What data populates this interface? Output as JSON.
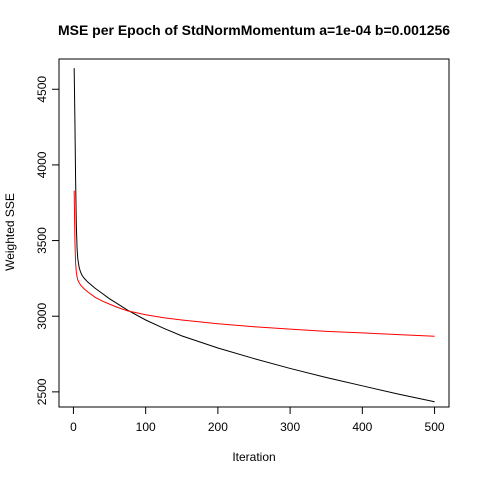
{
  "chart_data": {
    "type": "line",
    "title": "MSE per Epoch of StdNormMomentum a=1e-04 b=0.001256",
    "xlabel": "Iteration",
    "ylabel": "Weighted SSE",
    "xlim": [
      -20,
      520
    ],
    "ylim": [
      2400,
      4700
    ],
    "x_ticks": [
      0,
      100,
      200,
      300,
      400,
      500
    ],
    "x_tick_labels": [
      "0",
      "100",
      "200",
      "300",
      "400",
      "500"
    ],
    "y_ticks": [
      2500,
      3000,
      3500,
      4000,
      4500
    ],
    "y_tick_labels": [
      "2500",
      "3000",
      "3500",
      "4000",
      "4500"
    ],
    "grid": false,
    "series": [
      {
        "color": "#000000",
        "x": [
          1,
          2,
          3,
          4,
          5,
          6,
          8,
          10,
          12,
          15,
          20,
          30,
          40,
          50,
          60,
          75,
          100,
          125,
          150,
          200,
          250,
          300,
          350,
          400,
          450,
          500
        ],
        "y": [
          4640,
          4300,
          3900,
          3600,
          3450,
          3380,
          3320,
          3290,
          3270,
          3250,
          3225,
          3185,
          3150,
          3115,
          3085,
          3040,
          2975,
          2920,
          2870,
          2790,
          2720,
          2655,
          2595,
          2540,
          2485,
          2435
        ]
      },
      {
        "color": "#ff0000",
        "x": [
          1,
          2,
          3,
          4,
          5,
          6,
          8,
          10,
          15,
          20,
          30,
          40,
          50,
          60,
          75,
          100,
          125,
          150,
          200,
          250,
          300,
          350,
          400,
          450,
          500
        ],
        "y": [
          3830,
          3500,
          3350,
          3290,
          3260,
          3240,
          3220,
          3205,
          3180,
          3160,
          3125,
          3100,
          3080,
          3060,
          3035,
          3010,
          2990,
          2975,
          2950,
          2930,
          2915,
          2900,
          2890,
          2878,
          2868
        ]
      }
    ]
  }
}
